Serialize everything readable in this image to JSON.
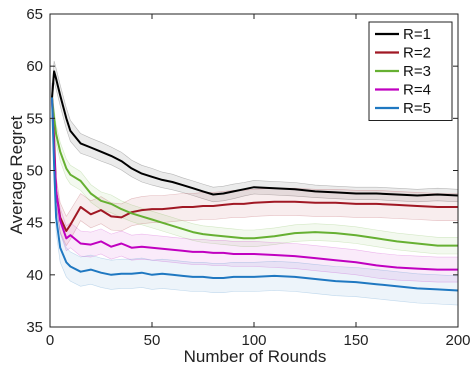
{
  "chart_data": {
    "type": "line",
    "title": "",
    "xlabel": "Number of Rounds",
    "ylabel": "Average Regret",
    "xlim": [
      0,
      200
    ],
    "ylim": [
      35,
      65
    ],
    "xticks": [
      0,
      50,
      100,
      150,
      200
    ],
    "yticks": [
      35,
      40,
      45,
      50,
      55,
      60,
      65
    ],
    "grid": false,
    "legend_position": "top-right",
    "confidence_band": true,
    "series": [
      {
        "name": "R=1",
        "color": "#000000",
        "x": [
          1,
          2,
          3,
          5,
          8,
          10,
          15,
          20,
          25,
          30,
          35,
          40,
          45,
          50,
          55,
          60,
          65,
          70,
          75,
          80,
          85,
          90,
          95,
          100,
          110,
          120,
          130,
          140,
          150,
          160,
          170,
          180,
          190,
          200
        ],
        "values": [
          57.0,
          59.5,
          58.8,
          57.2,
          55.0,
          53.8,
          52.6,
          52.2,
          51.8,
          51.4,
          50.9,
          50.2,
          49.7,
          49.4,
          49.1,
          48.9,
          48.6,
          48.3,
          48.0,
          47.7,
          47.8,
          48.0,
          48.2,
          48.4,
          48.3,
          48.2,
          48.0,
          47.9,
          47.8,
          47.8,
          47.7,
          47.6,
          47.7,
          47.6
        ],
        "band": [
          1.0,
          1.0,
          1.0,
          1.0,
          1.0,
          1.0,
          0.95,
          0.9,
          0.9,
          0.85,
          0.85,
          0.8,
          0.8,
          0.8,
          0.75,
          0.75,
          0.7,
          0.7,
          0.7,
          0.7,
          0.7,
          0.7,
          0.65,
          0.65,
          0.65,
          0.65,
          0.6,
          0.6,
          0.6,
          0.6,
          0.6,
          0.6,
          0.6,
          0.6
        ]
      },
      {
        "name": "R=2",
        "color": "#a01824",
        "x": [
          1,
          2,
          3,
          5,
          8,
          10,
          15,
          20,
          25,
          30,
          35,
          40,
          45,
          50,
          55,
          60,
          65,
          70,
          75,
          80,
          85,
          90,
          95,
          100,
          110,
          120,
          130,
          140,
          150,
          160,
          170,
          180,
          190,
          200
        ],
        "values": [
          57.0,
          53.0,
          48.0,
          45.5,
          44.2,
          44.8,
          46.5,
          45.8,
          46.2,
          45.6,
          45.5,
          46.0,
          46.2,
          46.3,
          46.3,
          46.4,
          46.5,
          46.5,
          46.6,
          46.6,
          46.7,
          46.8,
          46.8,
          46.9,
          47.0,
          47.0,
          46.9,
          46.9,
          46.8,
          46.8,
          46.7,
          46.6,
          46.5,
          46.5
        ],
        "band": [
          1.4,
          1.4,
          1.4,
          1.4,
          1.4,
          1.4,
          1.3,
          1.3,
          1.3,
          1.3,
          1.3,
          1.3,
          1.3,
          1.3,
          1.3,
          1.3,
          1.3,
          1.3,
          1.3,
          1.3,
          1.3,
          1.3,
          1.3,
          1.3,
          1.3,
          1.3,
          1.3,
          1.3,
          1.3,
          1.3,
          1.3,
          1.3,
          1.3,
          1.3
        ]
      },
      {
        "name": "R=3",
        "color": "#66b032",
        "x": [
          1,
          2,
          3,
          5,
          8,
          10,
          15,
          20,
          25,
          30,
          35,
          40,
          45,
          50,
          55,
          60,
          65,
          70,
          75,
          80,
          85,
          90,
          95,
          100,
          110,
          120,
          130,
          140,
          150,
          160,
          170,
          180,
          190,
          200
        ],
        "values": [
          57.0,
          55.0,
          53.5,
          51.8,
          50.2,
          49.6,
          49.0,
          47.8,
          47.1,
          46.8,
          46.3,
          45.9,
          45.6,
          45.3,
          45.0,
          44.7,
          44.4,
          44.1,
          43.9,
          43.8,
          43.7,
          43.6,
          43.5,
          43.5,
          43.7,
          44.0,
          44.1,
          44.0,
          43.8,
          43.5,
          43.2,
          43.0,
          42.8,
          42.8
        ],
        "band": [
          0.9,
          0.9,
          0.9,
          0.9,
          0.9,
          0.9,
          0.9,
          0.85,
          0.85,
          0.85,
          0.8,
          0.8,
          0.8,
          0.8,
          0.8,
          0.8,
          0.8,
          0.8,
          0.8,
          0.8,
          0.8,
          0.8,
          0.8,
          0.8,
          0.8,
          0.8,
          0.8,
          0.8,
          0.8,
          0.8,
          0.8,
          0.8,
          0.8,
          0.8
        ]
      },
      {
        "name": "R=4",
        "color": "#c000c0",
        "x": [
          1,
          2,
          3,
          5,
          8,
          10,
          15,
          20,
          25,
          30,
          35,
          40,
          45,
          50,
          55,
          60,
          65,
          70,
          75,
          80,
          85,
          90,
          95,
          100,
          110,
          120,
          130,
          140,
          150,
          160,
          170,
          180,
          190,
          200
        ],
        "values": [
          57.0,
          52.0,
          48.0,
          45.2,
          43.5,
          43.8,
          43.0,
          42.9,
          43.2,
          42.7,
          43.0,
          42.6,
          42.7,
          42.6,
          42.5,
          42.4,
          42.3,
          42.2,
          42.2,
          42.1,
          42.1,
          42.0,
          42.0,
          42.0,
          41.9,
          41.8,
          41.6,
          41.4,
          41.2,
          40.9,
          40.7,
          40.6,
          40.5,
          40.5
        ],
        "band": [
          1.2,
          1.2,
          1.2,
          1.2,
          1.2,
          1.2,
          1.2,
          1.2,
          1.2,
          1.2,
          1.2,
          1.2,
          1.2,
          1.2,
          1.2,
          1.2,
          1.2,
          1.2,
          1.2,
          1.2,
          1.2,
          1.2,
          1.2,
          1.2,
          1.2,
          1.2,
          1.2,
          1.2,
          1.2,
          1.2,
          1.2,
          1.2,
          1.2,
          1.2
        ]
      },
      {
        "name": "R=5",
        "color": "#1f78c1",
        "x": [
          1,
          2,
          3,
          5,
          8,
          10,
          15,
          20,
          25,
          30,
          35,
          40,
          45,
          50,
          55,
          60,
          65,
          70,
          75,
          80,
          85,
          90,
          95,
          100,
          110,
          120,
          130,
          140,
          150,
          160,
          170,
          180,
          190,
          200
        ],
        "values": [
          57.0,
          50.5,
          45.5,
          42.6,
          41.2,
          40.8,
          40.3,
          40.5,
          40.2,
          40.0,
          40.1,
          40.1,
          40.2,
          40.0,
          40.1,
          40.0,
          39.9,
          39.8,
          39.8,
          39.7,
          39.7,
          39.8,
          39.8,
          39.8,
          39.9,
          39.8,
          39.6,
          39.4,
          39.3,
          39.1,
          38.9,
          38.7,
          38.6,
          38.5
        ],
        "band": [
          1.4,
          1.4,
          1.4,
          1.4,
          1.4,
          1.4,
          1.4,
          1.4,
          1.4,
          1.4,
          1.4,
          1.4,
          1.4,
          1.4,
          1.4,
          1.4,
          1.4,
          1.4,
          1.4,
          1.4,
          1.4,
          1.4,
          1.4,
          1.4,
          1.4,
          1.4,
          1.4,
          1.4,
          1.4,
          1.4,
          1.4,
          1.4,
          1.4,
          1.4
        ]
      }
    ]
  }
}
